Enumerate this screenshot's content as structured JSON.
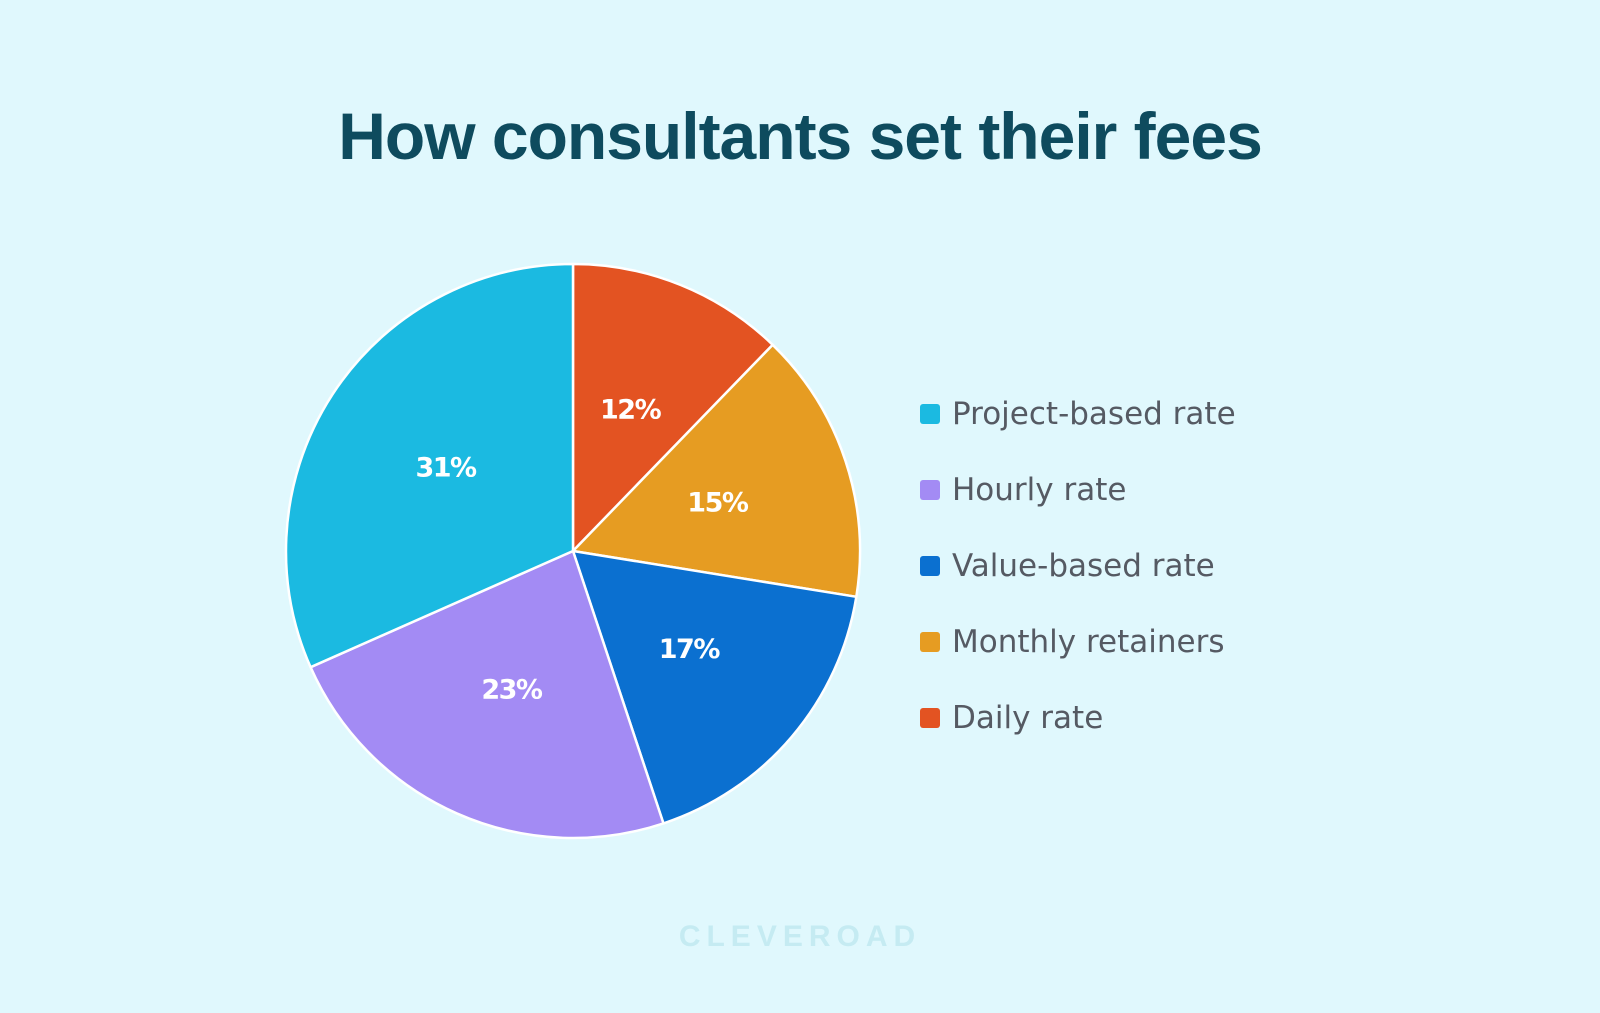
{
  "title": "How consultants set their fees",
  "chart_data": {
    "type": "pie",
    "title": "How consultants set their fees",
    "legend_position": "right",
    "start_angle_deg": 0,
    "direction": "clockwise",
    "slices": [
      {
        "name": "Daily rate",
        "value": 12,
        "label": "12%",
        "color": "#e35322"
      },
      {
        "name": "Monthly retainers",
        "value": 15,
        "label": "15%",
        "color": "#e69c22"
      },
      {
        "name": "Value-based rate",
        "value": 17,
        "label": "17%",
        "color": "#0b70d0"
      },
      {
        "name": "Hourly rate",
        "value": 23,
        "label": "23%",
        "color": "#a38bf4"
      },
      {
        "name": "Project-based rate",
        "value": 31,
        "label": "31%",
        "color": "#1bbae1"
      }
    ]
  },
  "legend": [
    {
      "label": "Project-based rate",
      "color": "#1bbae1"
    },
    {
      "label": "Hourly rate",
      "color": "#a38bf4"
    },
    {
      "label": "Value-based rate",
      "color": "#0b70d0"
    },
    {
      "label": "Monthly retainers",
      "color": "#e69c22"
    },
    {
      "label": "Daily rate",
      "color": "#e35322"
    }
  ],
  "watermark": "CLEVEROAD"
}
